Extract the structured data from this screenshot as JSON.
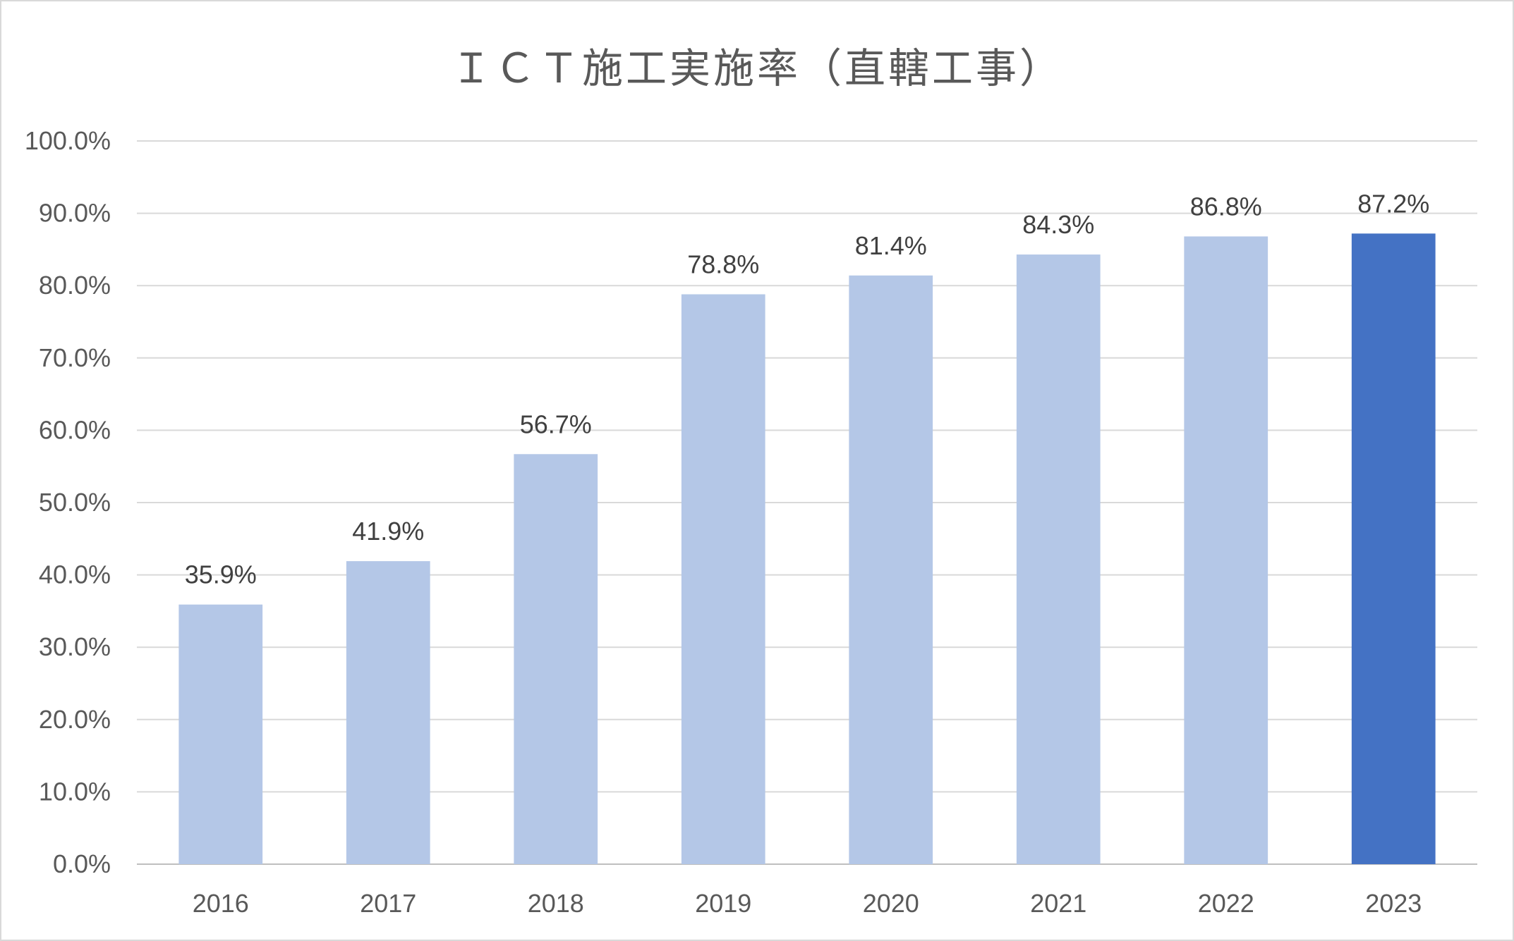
{
  "chart_data": {
    "type": "bar",
    "title": "ＩＣＴ施工実施率（直轄工事）",
    "categories": [
      "2016",
      "2017",
      "2018",
      "2019",
      "2020",
      "2021",
      "2022",
      "2023"
    ],
    "values": [
      35.9,
      41.9,
      56.7,
      78.8,
      81.4,
      84.3,
      86.8,
      87.2
    ],
    "data_labels": [
      "35.9%",
      "41.9%",
      "56.7%",
      "78.8%",
      "81.4%",
      "84.3%",
      "86.8%",
      "87.2%"
    ],
    "y_ticks": [
      "0.0%",
      "10.0%",
      "20.0%",
      "30.0%",
      "40.0%",
      "50.0%",
      "60.0%",
      "70.0%",
      "80.0%",
      "90.0%",
      "100.0%"
    ],
    "ylim": [
      0,
      100
    ],
    "grid": true,
    "legend": "none",
    "bar_color": "#b4c7e7",
    "highlight_color": "#4472c4",
    "highlight_category": "2023"
  }
}
